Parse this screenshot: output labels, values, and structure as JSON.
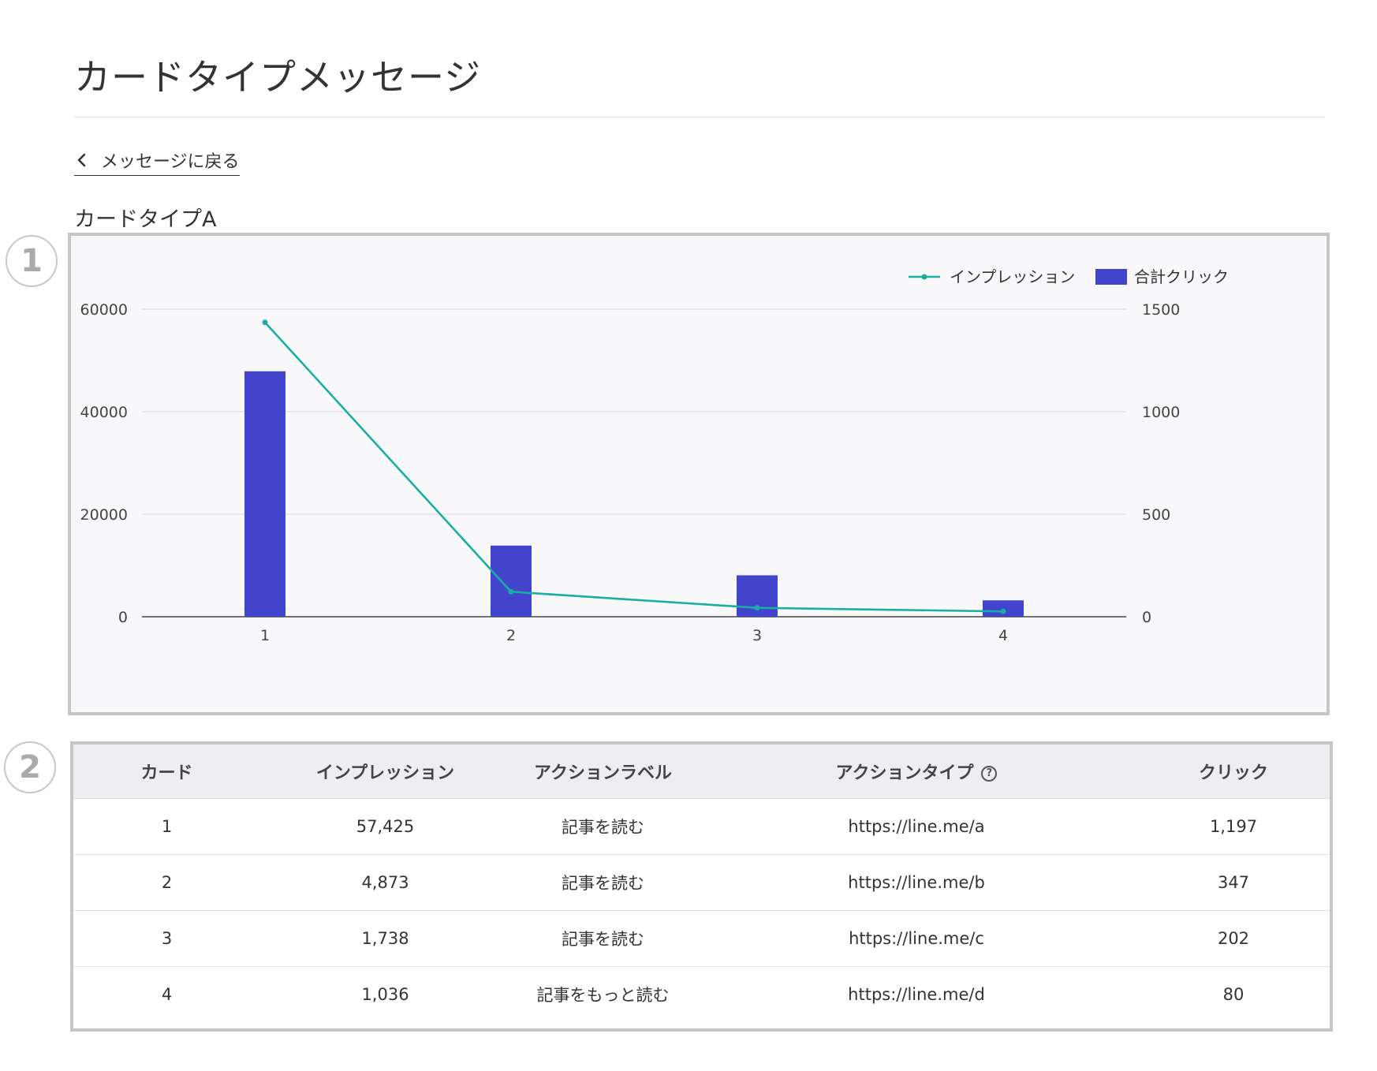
{
  "page": {
    "title": "カードタイプメッセージ",
    "back_label": "メッセージに戻る",
    "section_title": "カードタイプA"
  },
  "markers": [
    "1",
    "2"
  ],
  "colors": {
    "bar": "#4245cc",
    "line": "#1aaea3",
    "grid": "#d9d9de",
    "axis": "#444444"
  },
  "chart_data": {
    "type": "bar+line",
    "categories": [
      "1",
      "2",
      "3",
      "4"
    ],
    "series": [
      {
        "name": "インプレッション",
        "type": "line",
        "axis": "left",
        "values": [
          57425,
          4873,
          1738,
          1036
        ]
      },
      {
        "name": "合計クリック",
        "type": "bar",
        "axis": "right",
        "values": [
          1197,
          347,
          202,
          80
        ]
      }
    ],
    "y_left": {
      "min": 0,
      "max": 60000,
      "ticks": [
        "60000",
        "40000",
        "20000",
        "0"
      ],
      "tick_values": [
        60000,
        40000,
        20000,
        0
      ]
    },
    "y_right": {
      "min": 0,
      "max": 1500,
      "ticks": [
        "1500",
        "1000",
        "500",
        "0"
      ],
      "tick_values": [
        1500,
        1000,
        500,
        0
      ]
    },
    "grid": true,
    "legend": "top-right"
  },
  "table": {
    "headers": {
      "card": "カード",
      "impressions": "インプレッション",
      "action_label": "アクションラベル",
      "action_type": "アクションタイプ",
      "clicks": "クリック"
    },
    "help_icon": "help-circle-icon",
    "rows": [
      {
        "card": "1",
        "impressions": "57,425",
        "action_label": "記事を読む",
        "action_type": "https://line.me/a",
        "clicks": "1,197"
      },
      {
        "card": "2",
        "impressions": "4,873",
        "action_label": "記事を読む",
        "action_type": "https://line.me/b",
        "clicks": "347"
      },
      {
        "card": "3",
        "impressions": "1,738",
        "action_label": "記事を読む",
        "action_type": "https://line.me/c",
        "clicks": "202"
      },
      {
        "card": "4",
        "impressions": "1,036",
        "action_label": "記事をもっと読む",
        "action_type": "https://line.me/d",
        "clicks": "80"
      }
    ]
  }
}
